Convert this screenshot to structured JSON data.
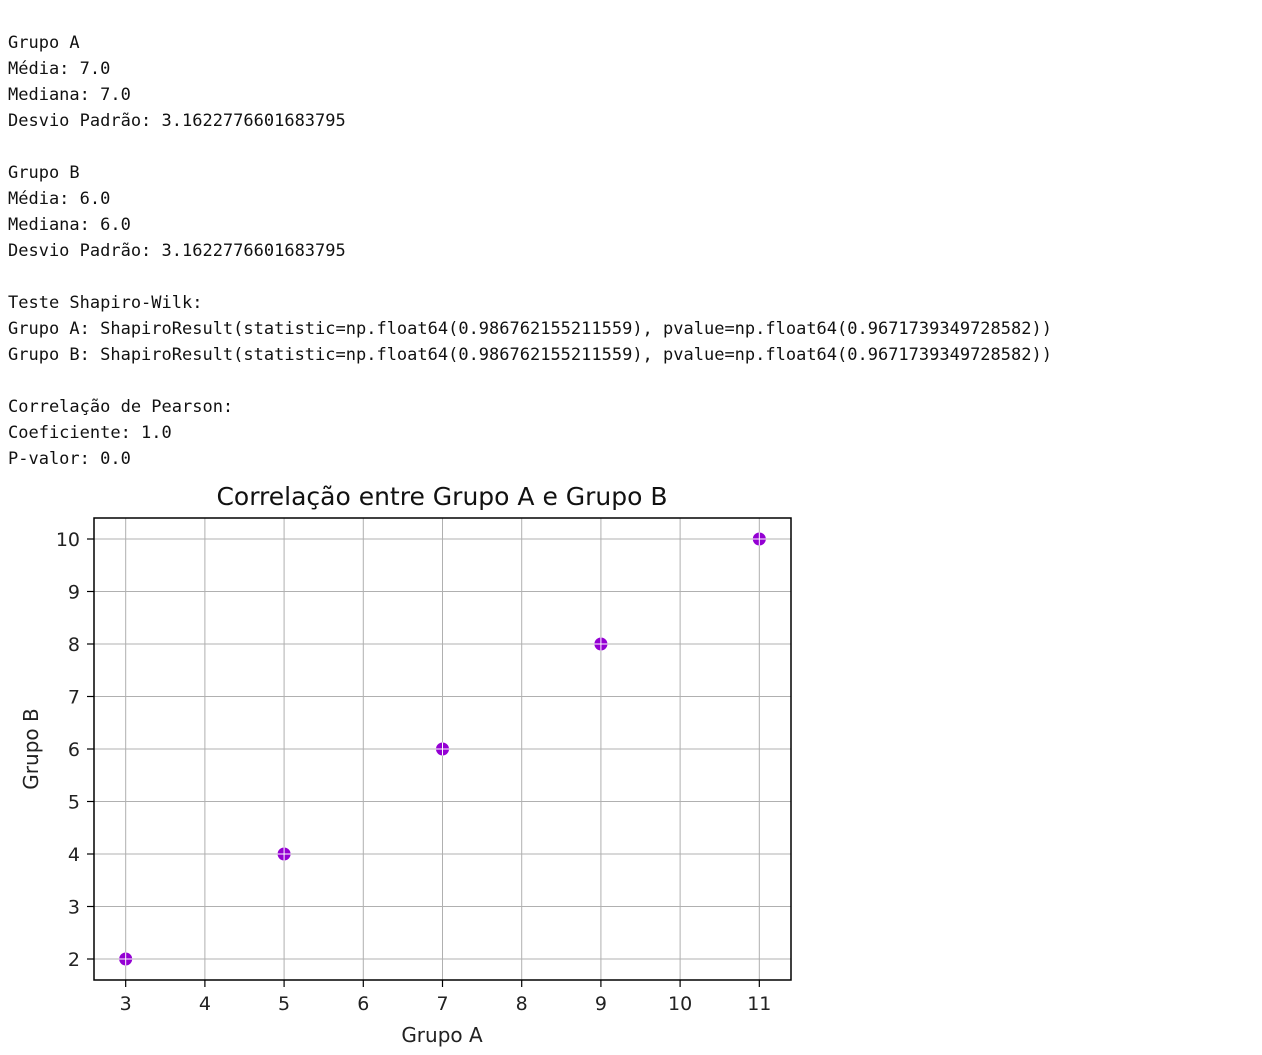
{
  "output_lines": [
    "Grupo A",
    "Média: 7.0",
    "Mediana: 7.0",
    "Desvio Padrão: 3.1622776601683795",
    "",
    "Grupo B",
    "Média: 6.0",
    "Mediana: 6.0",
    "Desvio Padrão: 3.1622776601683795",
    "",
    "Teste Shapiro-Wilk:",
    "Grupo A: ShapiroResult(statistic=np.float64(0.986762155211559), pvalue=np.float64(0.9671739349728582))",
    "Grupo B: ShapiroResult(statistic=np.float64(0.986762155211559), pvalue=np.float64(0.9671739349728582))",
    "",
    "Correlação de Pearson:",
    "Coeficiente: 1.0",
    "P-valor: 0.0"
  ],
  "chart_data": {
    "type": "scatter",
    "title": "Correlação entre Grupo A e Grupo B",
    "xlabel": "Grupo A",
    "ylabel": "Grupo B",
    "x": [
      3,
      5,
      7,
      9,
      11
    ],
    "y": [
      2,
      4,
      6,
      8,
      10
    ],
    "xlim": [
      2.6,
      11.4
    ],
    "ylim": [
      1.6,
      10.4
    ],
    "xticks": [
      "3",
      "4",
      "5",
      "6",
      "7",
      "8",
      "9",
      "10",
      "11"
    ],
    "yticks": [
      "2",
      "3",
      "4",
      "5",
      "6",
      "7",
      "8",
      "9",
      "10"
    ],
    "grid": true,
    "marker_color": "#9400d3"
  }
}
